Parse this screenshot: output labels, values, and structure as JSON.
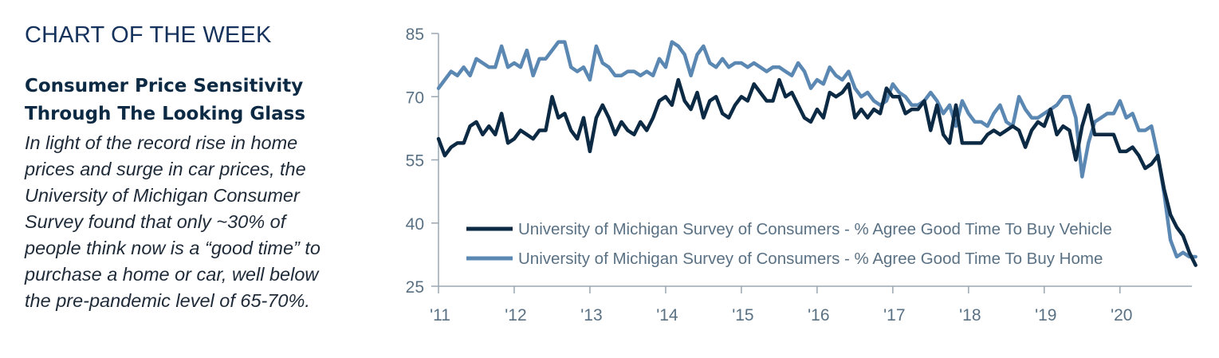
{
  "panel": {
    "eyebrow": "CHART OF THE WEEK",
    "headline_line1": "Consumer Price Sensitivity",
    "headline_line2": "Through The Looking Glass",
    "body_lines": [
      "In light of the record rise in home",
      "prices and surge in car prices, the",
      "University of Michigan Consumer",
      "Survey found that only ~30% of",
      "people think now is a “good time” to",
      "purchase a home or car, well below",
      "the pre-pandemic level of 65-70%."
    ]
  },
  "colors": {
    "vehicle": "#0d2a45",
    "home": "#5b88b3",
    "axis": "#9aa7b2",
    "tick_text": "#5a7184",
    "legend_text": "#5a7184"
  },
  "chart_data": {
    "type": "line",
    "title": "",
    "xlabel": "",
    "ylabel": "",
    "ylim": [
      25,
      85
    ],
    "yticks": [
      25,
      40,
      55,
      70,
      85
    ],
    "xlim": [
      2011,
      2020.95
    ],
    "xticks": [
      {
        "value": 2011,
        "label": "'11"
      },
      {
        "value": 2012,
        "label": "'12"
      },
      {
        "value": 2013,
        "label": "'13"
      },
      {
        "value": 2014,
        "label": "'14"
      },
      {
        "value": 2015,
        "label": "'15"
      },
      {
        "value": 2016,
        "label": "'16"
      },
      {
        "value": 2017,
        "label": "'17"
      },
      {
        "value": 2018,
        "label": "'18"
      },
      {
        "value": 2019,
        "label": "'19"
      },
      {
        "value": 2020,
        "label": "'20"
      }
    ],
    "grid": false,
    "legend_position": "bottom-right",
    "series": [
      {
        "name": "University of Michigan Survey of Consumers - % Agree Good Time To Buy Vehicle",
        "color_key": "vehicle",
        "start": 2011,
        "step_months": 1,
        "values": [
          60,
          56,
          58,
          59,
          59,
          63,
          64,
          61,
          63,
          61,
          66,
          59,
          60,
          62,
          61,
          60,
          62,
          62,
          70,
          65,
          66,
          62,
          60,
          65,
          57,
          65,
          68,
          65,
          61,
          64,
          62,
          61,
          64,
          62,
          65,
          69,
          70,
          68,
          74,
          69,
          67,
          71,
          65,
          69,
          70,
          66,
          65,
          68,
          70,
          69,
          73,
          71,
          69,
          69,
          74,
          70,
          71,
          68,
          65,
          64,
          67,
          65,
          71,
          70,
          71,
          73,
          65,
          67,
          65,
          67,
          66,
          72,
          70,
          70,
          66,
          67,
          67,
          69,
          62,
          68,
          61,
          59,
          68,
          59,
          59,
          59,
          59,
          61,
          62,
          61,
          62,
          63,
          62,
          58,
          62,
          64,
          63,
          67,
          61,
          63,
          62,
          55,
          63,
          68,
          61,
          61,
          61,
          61,
          57,
          57,
          58,
          56,
          53,
          54,
          56,
          48,
          42,
          39,
          37,
          33,
          30
        ]
      },
      {
        "name": "University of Michigan Survey of Consumers - % Agree Good Time To Buy Home",
        "color_key": "home",
        "start": 2011,
        "step_months": 1,
        "values": [
          72,
          74,
          76,
          75,
          77,
          75,
          79,
          78,
          77,
          77,
          82,
          77,
          78,
          77,
          81,
          75,
          79,
          79,
          81,
          83,
          83,
          77,
          76,
          77,
          74,
          82,
          78,
          77,
          75,
          75,
          76,
          76,
          75,
          76,
          75,
          79,
          77,
          83,
          82,
          80,
          75,
          80,
          82,
          78,
          77,
          79,
          77,
          78,
          78,
          77,
          78,
          77,
          76,
          77,
          77,
          76,
          75,
          78,
          76,
          72,
          74,
          73,
          77,
          75,
          74,
          76,
          72,
          70,
          71,
          69,
          68,
          69,
          73,
          71,
          70,
          68,
          68,
          69,
          71,
          69,
          66,
          68,
          63,
          69,
          66,
          64,
          64,
          63,
          66,
          68,
          64,
          63,
          70,
          67,
          65,
          65,
          66,
          67,
          68,
          70,
          70,
          65,
          51,
          59,
          64,
          65,
          66,
          66,
          69,
          65,
          66,
          62,
          62,
          63,
          56,
          47,
          36,
          32,
          33,
          32,
          32
        ]
      }
    ]
  }
}
